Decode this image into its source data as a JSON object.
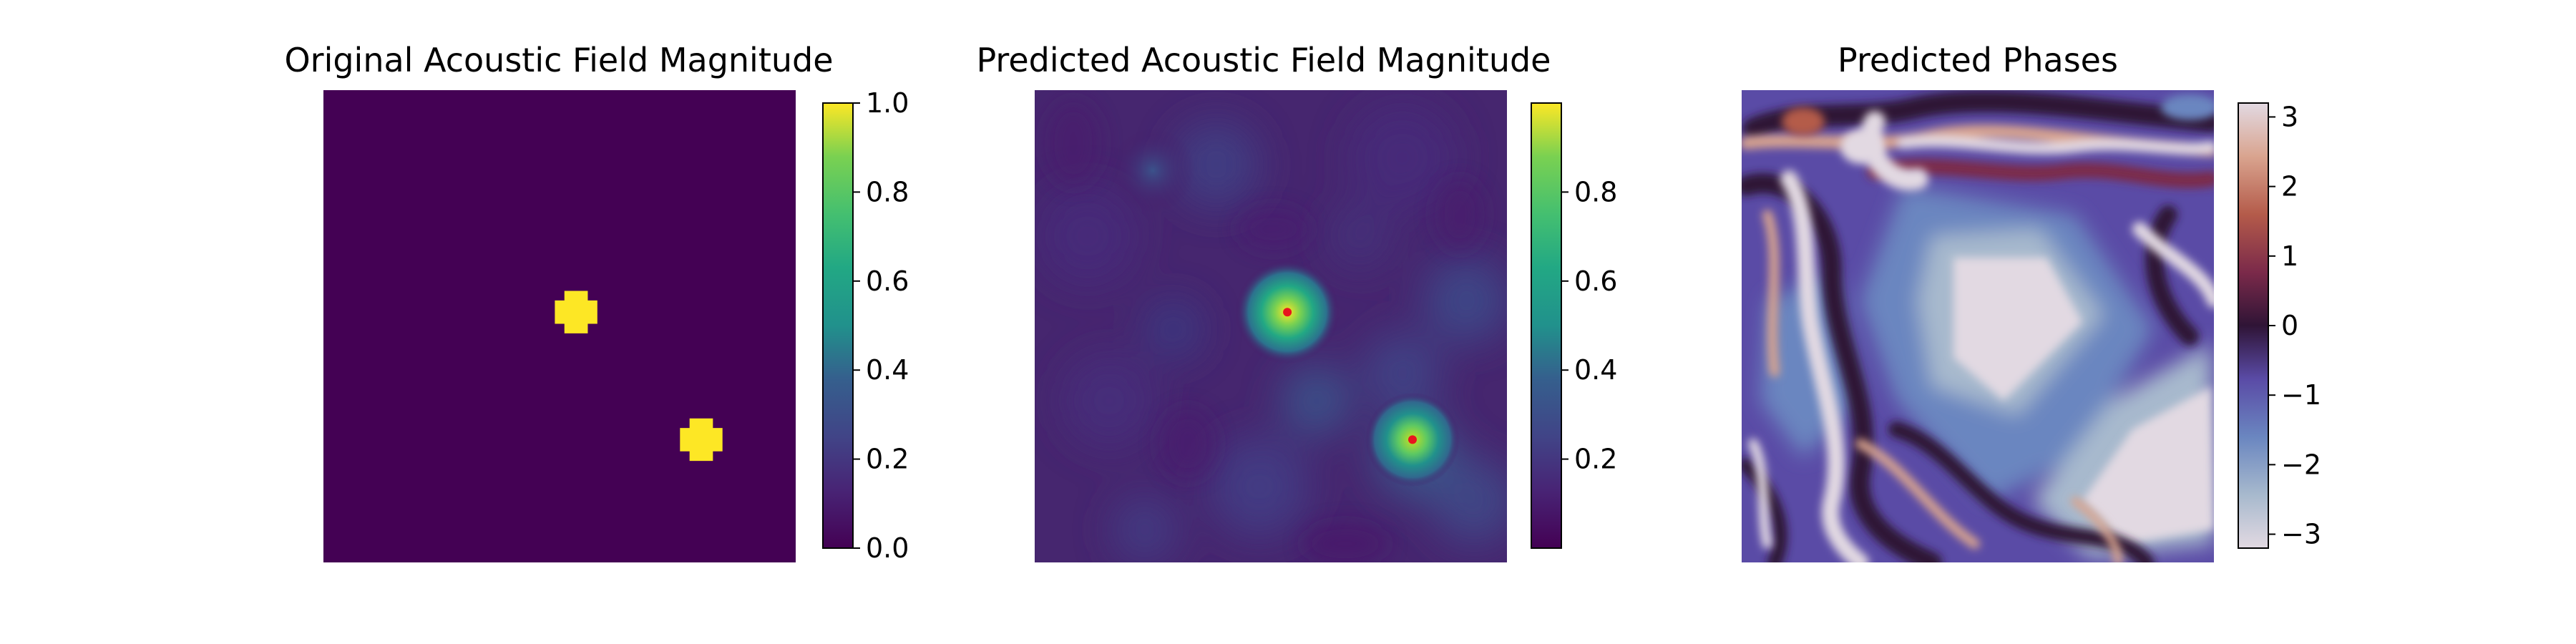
{
  "chart_data": [
    {
      "type": "heatmap",
      "title": "Original Acoustic Field Magnitude",
      "grid": false,
      "axes_visible": false,
      "colormap": "viridis",
      "background_value": 0.0,
      "spots": [
        {
          "x": 0.535,
          "y": 0.47,
          "r": 0.045,
          "value": 1.0
        },
        {
          "x": 0.8,
          "y": 0.74,
          "r": 0.045,
          "value": 1.0
        }
      ],
      "colorbar": {
        "range": [
          0.0,
          1.0
        ],
        "ticks": [
          "0.0",
          "0.2",
          "0.4",
          "0.6",
          "0.8",
          "1.0"
        ],
        "tick_values": [
          0.0,
          0.2,
          0.4,
          0.6,
          0.8,
          1.0
        ]
      }
    },
    {
      "type": "heatmap",
      "title": "Predicted Acoustic Field Magnitude",
      "grid": false,
      "axes_visible": false,
      "colormap": "viridis",
      "background_value": 0.12,
      "spots": [
        {
          "x": 0.535,
          "y": 0.47,
          "r": 0.11,
          "value": 0.98
        },
        {
          "x": 0.8,
          "y": 0.74,
          "r": 0.1,
          "value": 0.9
        },
        {
          "x": 0.25,
          "y": 0.17,
          "r": 0.09,
          "value": 0.25
        }
      ],
      "markers": [
        {
          "x": 0.535,
          "y": 0.47,
          "color": "#e8141e"
        },
        {
          "x": 0.8,
          "y": 0.74,
          "color": "#e8141e"
        }
      ],
      "colorbar": {
        "range": [
          0.0,
          1.0
        ],
        "ticks": [
          "0.2",
          "0.4",
          "0.6",
          "0.8"
        ],
        "tick_values": [
          0.2,
          0.4,
          0.6,
          0.8
        ]
      }
    },
    {
      "type": "heatmap",
      "title": "Predicted Phases",
      "grid": false,
      "axes_visible": false,
      "colormap": "twilight",
      "colorbar": {
        "range": [
          -3.2,
          3.2
        ],
        "ticks": [
          "−3",
          "−2",
          "−1",
          "0",
          "1",
          "2",
          "3"
        ],
        "tick_values": [
          -3,
          -2,
          -1,
          0,
          1,
          2,
          3
        ]
      }
    }
  ]
}
